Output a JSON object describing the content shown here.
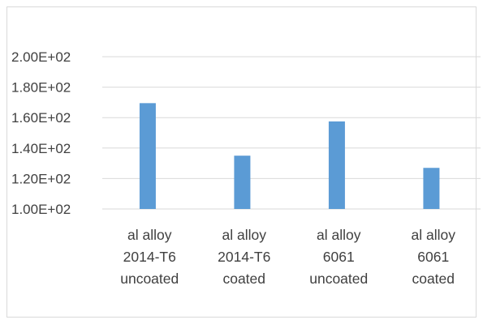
{
  "chart_data": {
    "type": "bar",
    "categories": [
      [
        "al alloy",
        "2014-T6",
        "uncoated"
      ],
      [
        "al alloy",
        "2014-T6",
        "coated"
      ],
      [
        "al alloy",
        "6061",
        "uncoated"
      ],
      [
        "al alloy",
        "6061",
        "coated"
      ]
    ],
    "values": [
      169.5,
      135.0,
      157.5,
      127.0
    ],
    "ylim": [
      100,
      200
    ],
    "yticks": [
      "1.00E+02",
      "1.20E+02",
      "1.40E+02",
      "1.60E+02",
      "1.80E+02",
      "2.00E+02"
    ],
    "ytick_values": [
      100,
      120,
      140,
      160,
      180,
      200
    ],
    "grid": true,
    "legend": "none",
    "colors": {
      "bar": "#5b9bd5",
      "grid": "#d9d9d9",
      "axis": "#d9d9d9",
      "text": "#404040"
    }
  }
}
